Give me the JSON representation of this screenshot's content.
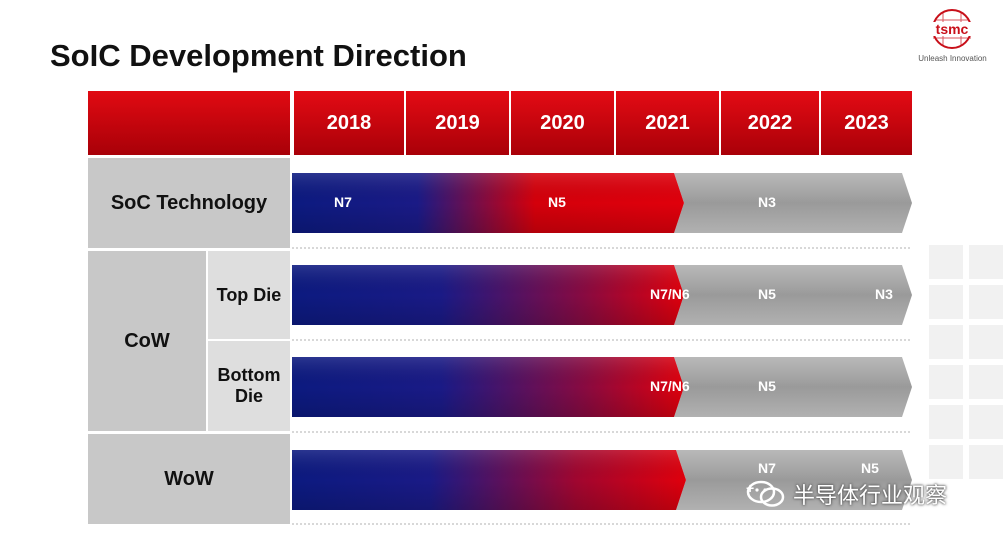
{
  "title": "SoIC Development Direction",
  "logo": {
    "brand": "tsmc",
    "tagline": "Unleash Innovation"
  },
  "years": [
    "2018",
    "2019",
    "2020",
    "2021",
    "2022",
    "2023"
  ],
  "rows": {
    "soc": {
      "label": "SoC Technology",
      "n7": "N7",
      "n5": "N5",
      "n3": "N3"
    },
    "cow": {
      "label": "CoW",
      "top_die": {
        "label": "Top Die",
        "a": "N7/N6",
        "b": "N5",
        "c": "N3"
      },
      "bottom_die": {
        "label": "Bottom Die",
        "a": "N7/N6",
        "b": "N5"
      }
    },
    "wow": {
      "label": "WoW",
      "a": "N7",
      "a_sub": "+",
      "b": "N5"
    }
  },
  "watermark": {
    "text": "半导体行业观察"
  },
  "colors": {
    "red": "#d4000b",
    "blue": "#0f1b7d",
    "gray": "#9d9d9d"
  }
}
